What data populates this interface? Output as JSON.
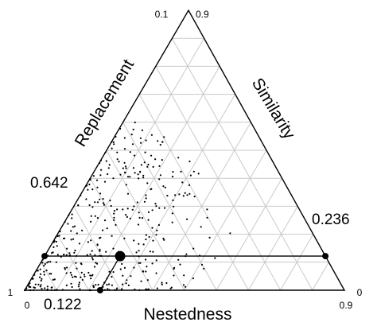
{
  "chart_data": {
    "type": "scatter",
    "subtype": "ternary",
    "axes": {
      "left": "Replacement",
      "right": "Similarity",
      "bottom": "Nestedness"
    },
    "tick_labels": {
      "top_left": "0.1",
      "top_right": "0.9",
      "bottom_left_outer": "1",
      "bottom_left_inner": "0",
      "bottom_right_outer": "0",
      "bottom_right_inner": "0.9"
    },
    "grid": true,
    "grid_divisions": 10,
    "centroid": {
      "replacement": 0.642,
      "nestedness": 0.122,
      "similarity": 0.236
    },
    "centroid_labels": {
      "replacement": "0.642",
      "nestedness": "0.122",
      "similarity": "0.236"
    },
    "points_count": 400,
    "points_spread": {
      "nestedness_min": 0.0,
      "nestedness_max": 0.6,
      "similarity_min": 0.0,
      "similarity_max": 0.55
    }
  }
}
